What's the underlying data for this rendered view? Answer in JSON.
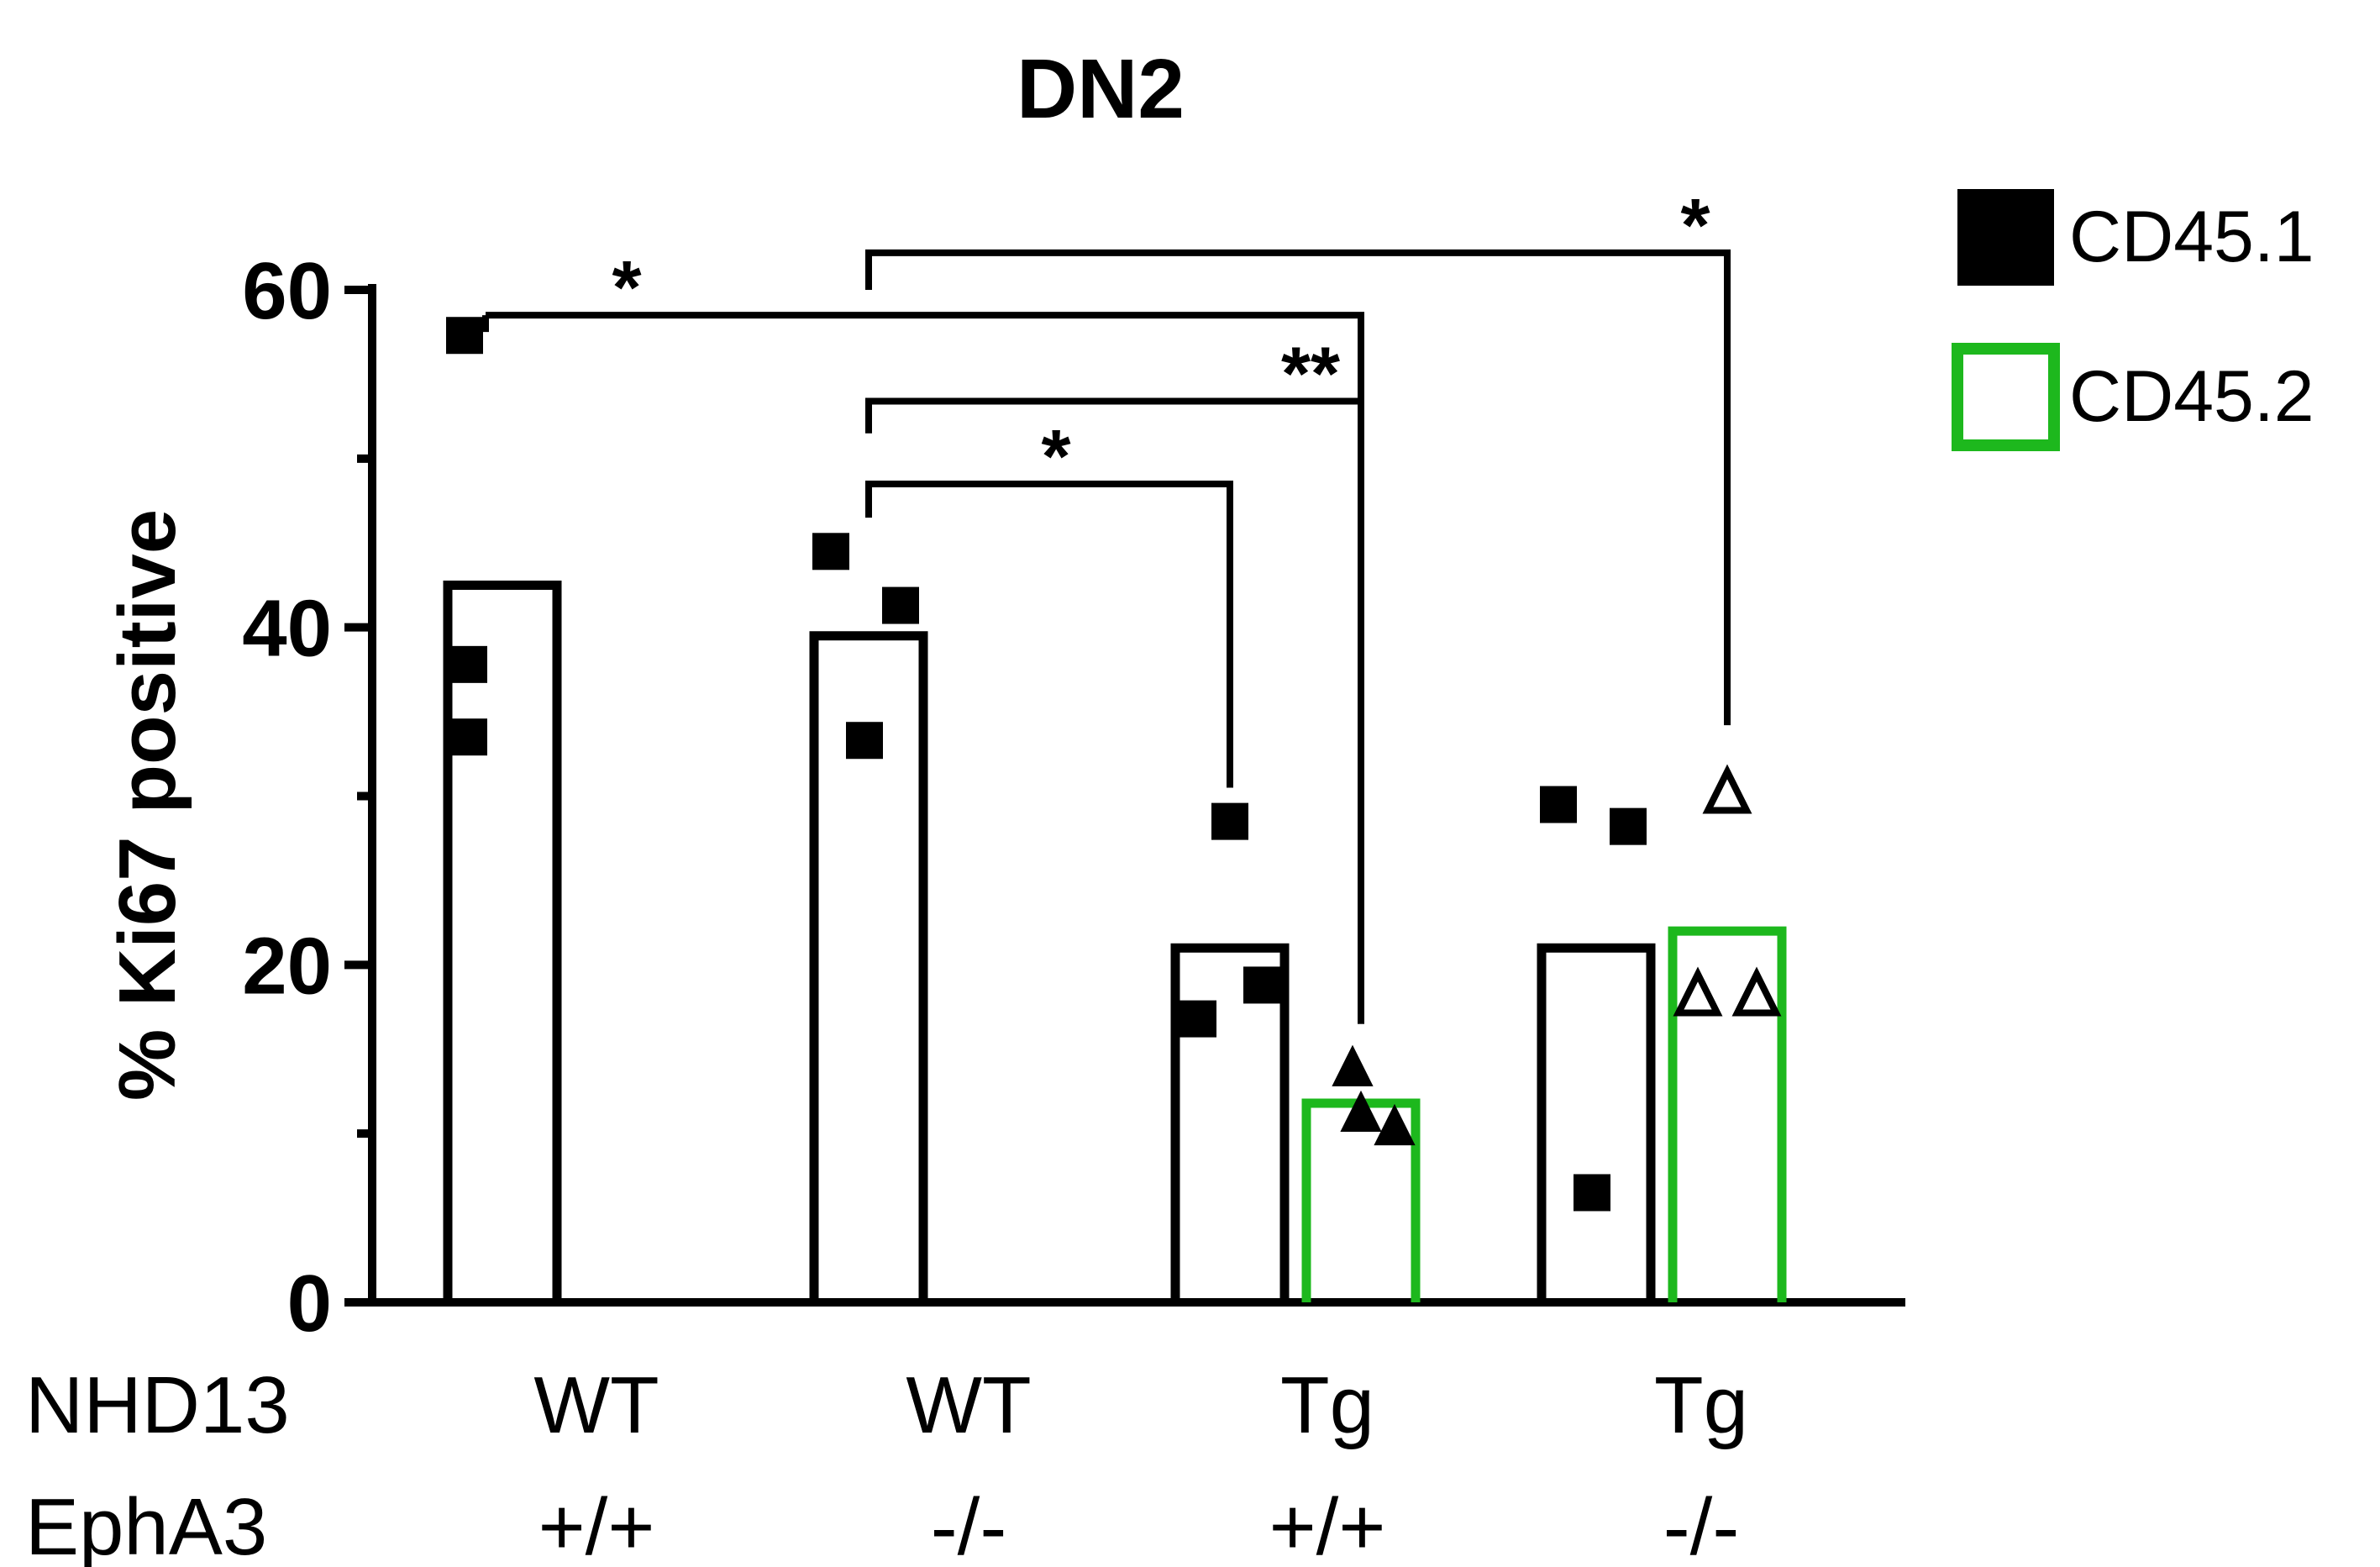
{
  "chart_data": {
    "type": "bar",
    "title": "DN2",
    "ylabel": "% Ki67 positive",
    "xlabel": "",
    "ylim": [
      0,
      60
    ],
    "yticks": [
      0,
      20,
      40,
      60
    ],
    "grid": false,
    "legend_position": "top-right",
    "legend": [
      {
        "name": "CD45.1",
        "color": "#000000"
      },
      {
        "name": "CD45.2",
        "color": "#1db81d"
      }
    ],
    "row_labels": [
      "NHD13",
      "EphA3"
    ],
    "groups": [
      {
        "nhd13": "WT",
        "epha3": "+/+"
      },
      {
        "nhd13": "WT",
        "epha3": "-/-"
      },
      {
        "nhd13": "Tg",
        "epha3": "+/+"
      },
      {
        "nhd13": "Tg",
        "epha3": "-/-"
      }
    ],
    "bars": [
      {
        "group": 0,
        "series": "CD45.1",
        "color": "#000000",
        "mean": 42.5,
        "marker": "square",
        "points": [
          57.3,
          37.8,
          33.5
        ]
      },
      {
        "group": 1,
        "series": "CD45.1",
        "color": "#000000",
        "mean": 39.5,
        "marker": "square",
        "points": [
          44.5,
          41.3,
          33.3
        ]
      },
      {
        "group": 2,
        "series": "CD45.1",
        "color": "#000000",
        "mean": 21.0,
        "marker": "square",
        "points": [
          28.5,
          18.8,
          16.8
        ]
      },
      {
        "group": 2,
        "series": "CD45.2",
        "color": "#1db81d",
        "mean": 11.8,
        "marker": "triangle",
        "points": [
          14.0,
          11.3,
          10.5
        ]
      },
      {
        "group": 3,
        "series": "CD45.1",
        "color": "#000000",
        "mean": 21.0,
        "marker": "square",
        "points": [
          29.5,
          28.2,
          6.5
        ]
      },
      {
        "group": 3,
        "series": "CD45.2",
        "color": "#1db81d",
        "mean": 22.0,
        "marker": "open-triangle",
        "points": [
          30.3,
          18.3,
          18.3
        ]
      }
    ],
    "significance": [
      {
        "from_bar": 0,
        "to_bar": 3,
        "label": "*"
      },
      {
        "from_bar": 1,
        "to_bar": 5,
        "label": "*"
      },
      {
        "from_bar": 1,
        "to_bar": 3,
        "label": "**"
      },
      {
        "from_bar": 1,
        "to_bar": 2,
        "label": "*"
      }
    ]
  }
}
